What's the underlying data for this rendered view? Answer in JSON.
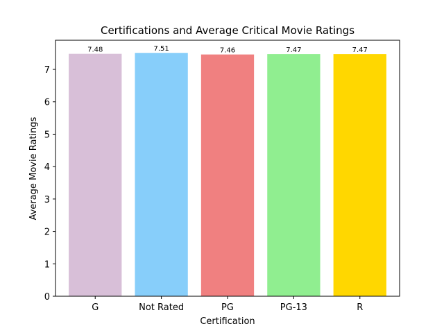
{
  "chart_data": {
    "type": "bar",
    "title": "Certifications and Average Critical Movie Ratings",
    "xlabel": "Certification",
    "ylabel": "Average Movie Ratings",
    "categories": [
      "G",
      "Not Rated",
      "PG",
      "PG-13",
      "R"
    ],
    "values": [
      7.48,
      7.51,
      7.46,
      7.47,
      7.47
    ],
    "value_labels": [
      "7.48",
      "7.51",
      "7.46",
      "7.47",
      "7.47"
    ],
    "colors": [
      "#D8BFD8",
      "#87CEFA",
      "#F08080",
      "#90EE90",
      "#FFD700"
    ],
    "ylim": [
      0,
      7.9
    ],
    "yticks": [
      0,
      1,
      2,
      3,
      4,
      5,
      6,
      7
    ],
    "grid": false,
    "legend": "none"
  }
}
